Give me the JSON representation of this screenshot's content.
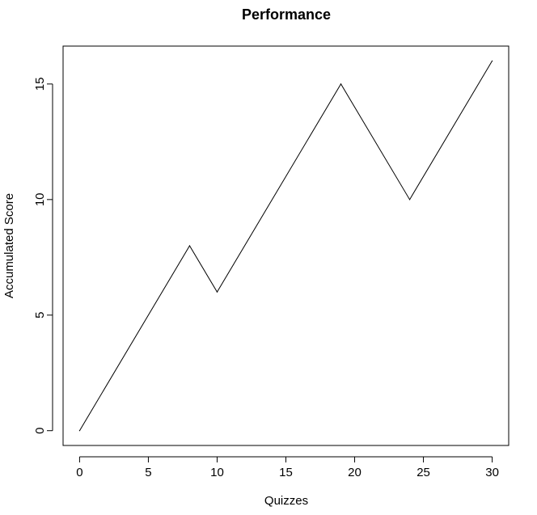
{
  "chart_data": {
    "type": "line",
    "title": "Performance",
    "xlabel": "Quizzes",
    "ylabel": "Accumulated Score",
    "x": [
      0,
      8,
      10,
      19,
      24,
      30
    ],
    "series": [
      {
        "values": [
          0,
          8,
          6,
          15,
          10,
          16
        ]
      }
    ],
    "xlim": [
      -1.2,
      31.2
    ],
    "ylim": [
      -0.64,
      16.64
    ],
    "xticks": [
      0,
      5,
      10,
      15,
      20,
      25,
      30
    ],
    "yticks": [
      0,
      5,
      10,
      15
    ],
    "xtick_labels": [
      "0",
      "5",
      "10",
      "15",
      "20",
      "25",
      "30"
    ],
    "ytick_labels": [
      "0",
      "5",
      "10",
      "15"
    ],
    "grid": false,
    "line_color": "#000000"
  }
}
